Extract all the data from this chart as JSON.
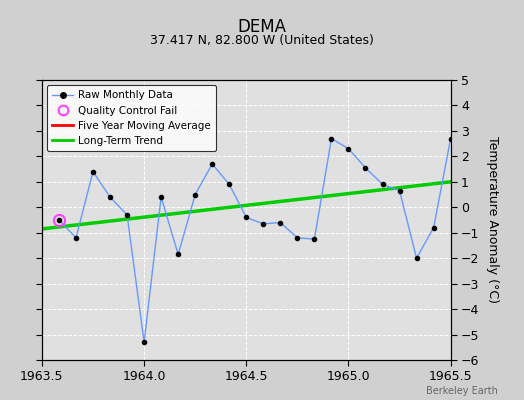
{
  "title": "DEMA",
  "subtitle": "37.417 N, 82.800 W (United States)",
  "ylabel": "Temperature Anomaly (°C)",
  "watermark": "Berkeley Earth",
  "xlim": [
    1963.5,
    1965.5
  ],
  "ylim": [
    -6,
    5
  ],
  "yticks": [
    -6,
    -5,
    -4,
    -3,
    -2,
    -1,
    0,
    1,
    2,
    3,
    4,
    5
  ],
  "xticks": [
    1963.5,
    1964.0,
    1964.5,
    1965.0,
    1965.5
  ],
  "background_color": "#d0d0d0",
  "plot_bg_color": "#e0e0e0",
  "raw_x": [
    1963.5833,
    1963.6667,
    1963.75,
    1963.8333,
    1963.9167,
    1964.0,
    1964.0833,
    1964.1667,
    1964.25,
    1964.3333,
    1964.4167,
    1964.5,
    1964.5833,
    1964.6667,
    1964.75,
    1964.8333,
    1964.9167,
    1965.0,
    1965.0833,
    1965.1667,
    1965.25,
    1965.3333,
    1965.4167,
    1965.5
  ],
  "raw_y": [
    -0.5,
    -1.2,
    1.4,
    0.4,
    -0.3,
    -5.3,
    0.4,
    -1.85,
    0.5,
    1.7,
    0.9,
    -0.4,
    -0.65,
    -0.6,
    -1.2,
    -1.25,
    2.7,
    2.3,
    1.55,
    0.9,
    0.65,
    -2.0,
    -0.8,
    2.7
  ],
  "qc_fail_x": [
    1963.5833
  ],
  "qc_fail_y": [
    -0.5
  ],
  "trend_x": [
    1963.5,
    1965.5
  ],
  "trend_y": [
    -0.85,
    1.0
  ],
  "raw_line_color": "#6699ff",
  "trend_color": "#00cc00",
  "ma_color": "#ff0000",
  "qc_color": "#ff44ff",
  "grid_color": "#ffffff",
  "title_fontsize": 12,
  "subtitle_fontsize": 9,
  "tick_fontsize": 9,
  "ylabel_fontsize": 9
}
